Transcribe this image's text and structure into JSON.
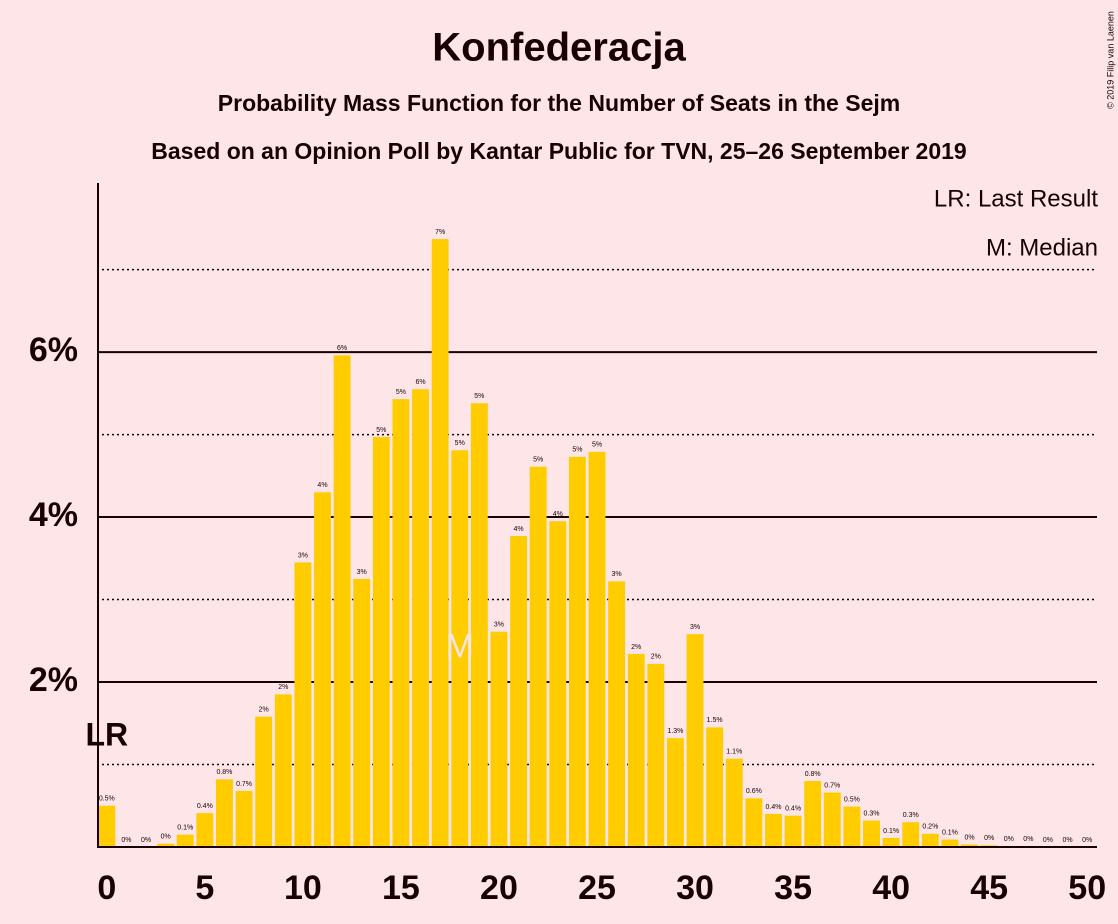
{
  "chart_data": {
    "type": "bar",
    "title": "Konfederacja",
    "subtitle": "Probability Mass Function for the Number of Seats in the Sejm",
    "subtitle2": "Based on an Opinion Poll by Kantar Public for TVN, 25–26 September 2019",
    "copyright": "© 2019 Filip van Laenen",
    "legend": [
      "LR: Last Result",
      "M: Median"
    ],
    "color": "#ffcc00",
    "x": [
      0,
      1,
      2,
      3,
      4,
      5,
      6,
      7,
      8,
      9,
      10,
      11,
      12,
      13,
      14,
      15,
      16,
      17,
      18,
      19,
      20,
      21,
      22,
      23,
      24,
      25,
      26,
      27,
      28,
      29,
      30,
      31,
      32,
      33,
      34,
      35,
      36,
      37,
      38,
      39,
      40,
      41,
      42,
      43,
      44,
      45,
      46,
      47,
      48,
      49,
      50
    ],
    "values": [
      0.5,
      0,
      0,
      0.04,
      0.15,
      0.41,
      0.82,
      0.68,
      1.58,
      1.85,
      3.45,
      4.3,
      5.96,
      3.25,
      4.97,
      5.43,
      5.55,
      7.37,
      4.81,
      5.38,
      2.61,
      3.77,
      4.61,
      3.95,
      4.73,
      4.79,
      3.22,
      2.34,
      2.22,
      1.32,
      2.58,
      1.45,
      1.07,
      0.59,
      0.4,
      0.38,
      0.8,
      0.66,
      0.49,
      0.32,
      0.11,
      0.3,
      0.16,
      0.09,
      0.03,
      0.02,
      0.01,
      0.01,
      0,
      0,
      0
    ],
    "value_labels": [
      "0.5%",
      "0%",
      "0%",
      "0%",
      "0.1%",
      "0.4%",
      "0.8%",
      "0.7%",
      "2%",
      "2%",
      "3%",
      "4%",
      "6%",
      "3%",
      "5%",
      "5%",
      "6%",
      "7%",
      "5%",
      "5%",
      "3%",
      "4%",
      "5%",
      "4%",
      "5%",
      "5%",
      "3%",
      "2%",
      "2%",
      "1.3%",
      "3%",
      "1.5%",
      "1.1%",
      "0.6%",
      "0.4%",
      "0.4%",
      "0.8%",
      "0.7%",
      "0.5%",
      "0.3%",
      "0.1%",
      "0.3%",
      "0.2%",
      "0.1%",
      "0%",
      "0%",
      "0%",
      "0%",
      "0%",
      "0%",
      "0%"
    ],
    "median": {
      "x": 18,
      "label": "M"
    },
    "last_result": {
      "x": 0,
      "label": "LR"
    },
    "xlim": [
      -0.5,
      50.5
    ],
    "xticks": [
      0,
      5,
      10,
      15,
      20,
      25,
      30,
      35,
      40,
      45,
      50
    ],
    "ylim": [
      0,
      8.05
    ],
    "yticks": [
      {
        "value": 2,
        "label": "2%"
      },
      {
        "value": 4,
        "label": "4%"
      },
      {
        "value": 6,
        "label": "6%"
      }
    ],
    "minor_gridlines": [
      1,
      3,
      5,
      7
    ]
  }
}
